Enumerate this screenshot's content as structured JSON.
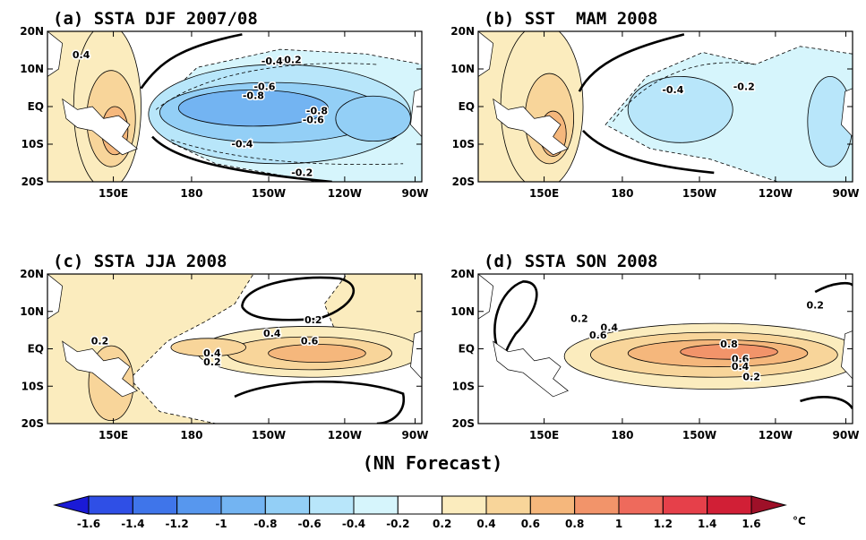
{
  "panels": [
    {
      "title": "(a) SSTA DJF 2007/08",
      "contour_labels": [
        "0.4",
        "-0.2",
        "-0.6",
        "-0.8",
        "-0.4",
        "-0.8",
        "-0.6",
        "-0.4",
        "-0.2"
      ]
    },
    {
      "title": "(b) SST  MAM 2008",
      "contour_labels": [
        "-0.4",
        "-0.2"
      ]
    },
    {
      "title": "(c) SSTA JJA 2008",
      "contour_labels": [
        "0.2",
        "0.4",
        "0.6",
        "0.4",
        "0.2",
        "0.2"
      ]
    },
    {
      "title": "(d) SSTA SON 2008",
      "contour_labels": [
        "0.2",
        "0.2",
        "0.4",
        "0.6",
        "0.8",
        "0.6",
        "0.4",
        "0.2"
      ]
    }
  ],
  "lat_ticks": [
    "20N",
    "10N",
    "EQ",
    "10S",
    "20S"
  ],
  "lon_ticks": [
    "150E",
    "180",
    "150W",
    "120W",
    "90W"
  ],
  "footer": "(NN Forecast)",
  "colorbar": {
    "labels": [
      "-1.6",
      "-1.4",
      "-1.2",
      "-1",
      "-0.8",
      "-0.6",
      "-0.4",
      "-0.2",
      "0.2",
      "0.4",
      "0.6",
      "0.8",
      "1",
      "1.2",
      "1.4",
      "1.6"
    ],
    "unit": "°C",
    "colors": [
      "#1a1ad6",
      "#2f4fe6",
      "#3f75ea",
      "#5797ee",
      "#73b4f2",
      "#93cff6",
      "#b8e6fa",
      "#d6f5fc",
      "#ffffff",
      "#fbecbe",
      "#f8d59a",
      "#f5b77c",
      "#f2946a",
      "#ee6a5c",
      "#e6404a",
      "#d11f36",
      "#9e1028"
    ]
  }
}
